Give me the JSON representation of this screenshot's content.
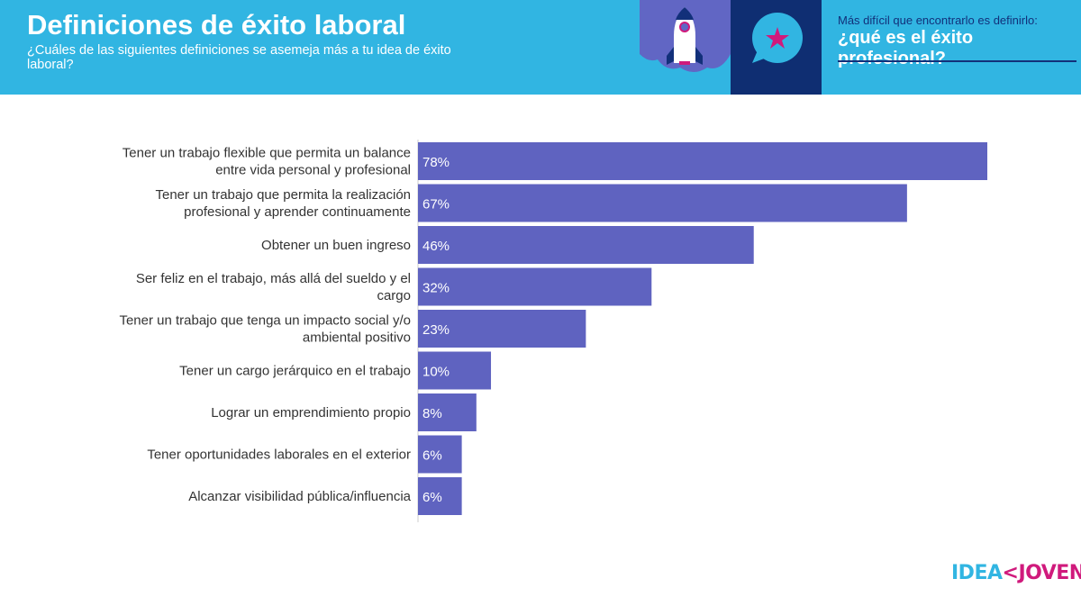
{
  "header": {
    "title": "Definiciones de éxito laboral",
    "subtitle": "¿Cuáles de las siguientes definiciones se asemeja más a tu idea de éxito laboral?",
    "tagline_small": "Más difícil que encontrarlo es definirlo:",
    "tagline_big": "¿qué es el éxito profesional?",
    "icons": [
      "rocket-icon",
      "speech-bubble-star-icon"
    ]
  },
  "logo": {
    "part1": "IDEA",
    "part2": "<JOVEN"
  },
  "colors": {
    "header": "#31b5e2",
    "bar": "#5f63c0",
    "navy": "#0f2e72",
    "magenta": "#d01a7c"
  },
  "chart_data": {
    "type": "bar",
    "orientation": "horizontal",
    "categories": [
      [
        "Tener un trabajo flexible que permita un balance",
        "entre vida personal y profesional"
      ],
      [
        "Tener un trabajo que permita la realización",
        "profesional y aprender continuamente"
      ],
      [
        "Obtener un buen ingreso"
      ],
      [
        "Ser feliz en el trabajo, más allá del sueldo y el",
        "cargo"
      ],
      [
        "Tener un trabajo que tenga un impacto social y/o",
        "ambiental positivo"
      ],
      [
        "Tener un cargo jerárquico en el trabajo"
      ],
      [
        "Lograr un emprendimiento propio"
      ],
      [
        "Tener oportunidades laborales en el exterior"
      ],
      [
        "Alcanzar visibilidad pública/influencia"
      ]
    ],
    "values": [
      78,
      67,
      46,
      32,
      23,
      10,
      8,
      6,
      6
    ],
    "data_labels": [
      "78%",
      "67%",
      "46%",
      "32%",
      "23%",
      "10%",
      "8%",
      "6%",
      "6%"
    ],
    "unit": "%",
    "grid": false,
    "legend": "none"
  }
}
